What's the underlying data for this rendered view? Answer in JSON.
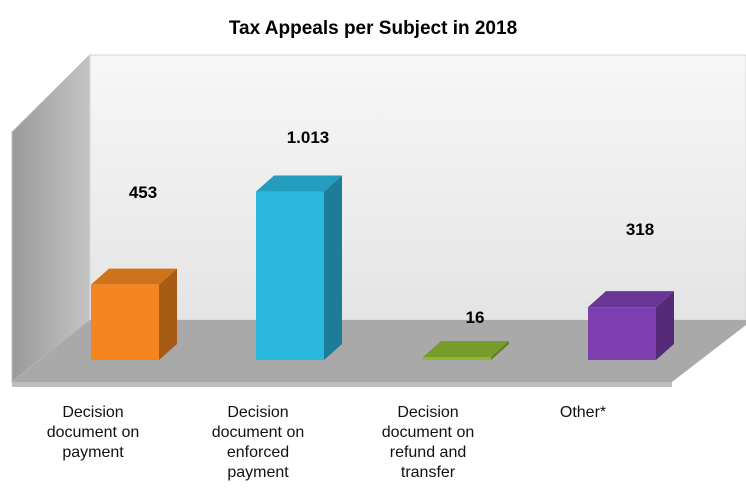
{
  "chart_data": {
    "type": "bar",
    "style": "3d-column",
    "title": "Tax Appeals per Subject in 2018",
    "categories": [
      "Decision\ndocument on\npayment",
      "Decision\ndocument on\nenforced\npayment",
      "Decision\ndocument on\nrefund and\ntransfer",
      "Other*"
    ],
    "values": [
      453,
      1013,
      16,
      318
    ],
    "value_labels": [
      "453",
      "1.013",
      "16",
      "318"
    ],
    "colors": [
      "#F5861F",
      "#2AB7DE",
      "#8DB832",
      "#7D3FAF"
    ],
    "ylim": [
      0,
      1200
    ],
    "grid": false,
    "legend": "none"
  }
}
